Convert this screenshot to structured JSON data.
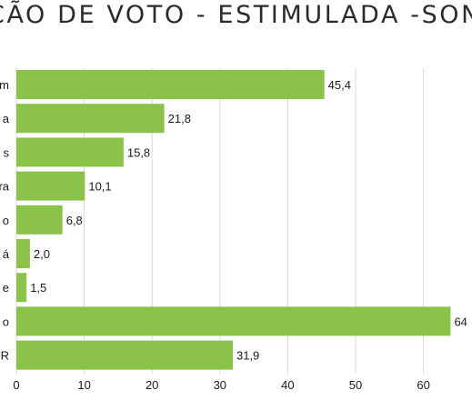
{
  "chart_data": {
    "type": "bar",
    "orientation": "horizontal",
    "title": "ÇÃO DE VOTO - ESTIMULADA -SON",
    "categories": [
      "m",
      "a",
      "s",
      "ra",
      "o",
      "á",
      "e",
      "o",
      "R"
    ],
    "values": [
      45.4,
      21.8,
      15.8,
      10.1,
      6.8,
      2.0,
      1.5,
      64,
      31.9
    ],
    "value_labels": [
      "45,4",
      "21,8",
      "15,8",
      "10,1",
      "6,8",
      "2,0",
      "1,5",
      "64",
      "31,9"
    ],
    "x_ticks": [
      0,
      10,
      20,
      30,
      40,
      50,
      60
    ],
    "tick_labels": [
      "0",
      "10",
      "20",
      "30",
      "40",
      "50",
      "60"
    ],
    "xlim": [
      0,
      70
    ],
    "grid": true,
    "bar_color": "#8bc34a"
  }
}
